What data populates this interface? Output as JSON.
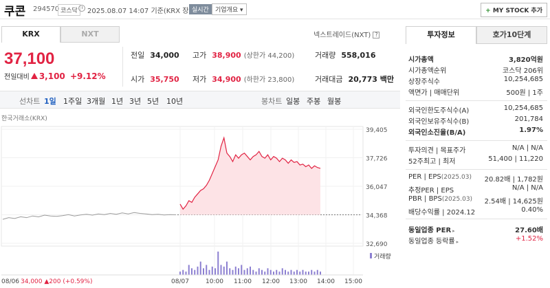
{
  "header": {
    "stock_name": "쿠콘",
    "stock_code": "294570",
    "market_badge": "코스닥",
    "timestamp": "2025.08.07 14:07",
    "timestamp_suffix": "기준(KRX 장중)",
    "live_badge": "실시간",
    "company_intro_button": "기업개요",
    "my_stock_button": "MY STOCK 추가"
  },
  "tabs": {
    "krx": "KRX",
    "nxt": "NXT"
  },
  "nextrade_link": "넥스트레이드(NXT)",
  "price": {
    "current": "37,100",
    "change_label": "전일대비",
    "change": "3,100",
    "change_pct": "+9.12%"
  },
  "stats": {
    "prev_label": "전일",
    "prev": "34,000",
    "high_label": "고가",
    "high": "38,900",
    "upper_limit": "(상한가 44,200)",
    "volume_label": "거래량",
    "volume": "558,016",
    "open_label": "시가",
    "open": "35,750",
    "low_label": "저가",
    "low": "34,900",
    "lower_limit": "(하한가 23,800)",
    "amount_label": "거래대금",
    "amount": "20,773 백만"
  },
  "period_bar": {
    "label": "선차트",
    "periods": [
      "1일",
      "1주일",
      "3개월",
      "1년",
      "3년",
      "5년",
      "10년"
    ],
    "selected": "1일",
    "candle_label": "봉차트",
    "candle_periods": [
      "일봉",
      "주봉",
      "월봉"
    ]
  },
  "exchange_label": "한국거래소(KRX)",
  "chart_data": {
    "type": "line",
    "y_ticks": [
      "39,405",
      "37,726",
      "36,047",
      "34,368",
      "32,690"
    ],
    "ylim": [
      32690,
      39405
    ],
    "reference_line": 34368,
    "x_ticks": [
      "08/07",
      "10:00",
      "11:00",
      "12:00",
      "13:00",
      "14:00",
      "15:00"
    ],
    "prev_day_date": "08/06",
    "prev_day_summary": {
      "price": "34,000",
      "change": "200",
      "change_pct": "(+0.59%)"
    },
    "volume_label": "거래량",
    "series": [
      {
        "values": [
          34100,
          34200,
          34150,
          34250,
          34200,
          34300,
          34250,
          34350,
          34300,
          34280,
          34320,
          34380,
          34300,
          34360,
          34400,
          34350,
          34420,
          34380,
          34450,
          34400,
          34480,
          34420,
          34500,
          34450,
          34420,
          34380,
          34400,
          34360,
          34380,
          34368
        ]
      },
      {
        "values": [
          35000,
          34700,
          34900,
          35200,
          35100,
          35400,
          35600,
          35800,
          35900,
          36100,
          36400,
          36800,
          37200,
          37600,
          38400,
          38900,
          38000,
          37800,
          37500,
          37900,
          37700,
          37900,
          38000,
          37800,
          37600,
          37800,
          37900,
          38100,
          37800,
          37700,
          37900,
          37600,
          37800,
          37700,
          37500,
          37700,
          37600,
          37400,
          37600,
          37450,
          37500,
          37300,
          37350,
          37200,
          37300,
          37100,
          37250,
          37150,
          37100
        ]
      }
    ],
    "volume": [
      2,
      3,
      2,
      6,
      4,
      3,
      5,
      8,
      4,
      6,
      3,
      5,
      4,
      14,
      6,
      5,
      8,
      4,
      3,
      5,
      4,
      6,
      3,
      4,
      5,
      3,
      2,
      4,
      3,
      2,
      4,
      3,
      2,
      3,
      2,
      4,
      3,
      2,
      3,
      2,
      3,
      2,
      3,
      2,
      2,
      3,
      2,
      3,
      2
    ]
  },
  "investment_panel": {
    "tab_invest": "투자정보",
    "tab_orderbook": "호가10단계",
    "rows": [
      {
        "k": "시가총액",
        "v": "3,820억원"
      },
      {
        "k": "시가총액순위",
        "v": "코스닥 206위"
      },
      {
        "k": "상장주식수",
        "v": "10,254,685"
      },
      {
        "k": "액면가 | 매매단위",
        "v": "500원 | 1주"
      },
      {
        "k": "외국인한도주식수(A)",
        "v": "10,254,685"
      },
      {
        "k": "외국인보유주식수(B)",
        "v": "201,784"
      },
      {
        "k": "외국인소진율(B/A)",
        "v": "1.97%"
      },
      {
        "k": "투자의견 | 목표주가",
        "v": "N/A | N/A"
      },
      {
        "k": "52주최고 | 최저",
        "v": "51,400 | 11,220"
      },
      {
        "k": "PER | EPS",
        "k_sub": "(2025.03)",
        "v": "20.82배 | 1,782원"
      },
      {
        "k": "추정PER | EPS",
        "v": "N/A | N/A"
      },
      {
        "k": "PBR | BPS",
        "k_sub": "(2025.03)",
        "v": "2.54배 | 14,625원"
      },
      {
        "k": "배당수익률 | 2024.12",
        "v": "0.40%"
      },
      {
        "k": "동일업종 PER",
        "v": "27.60배"
      },
      {
        "k": "동일업종 등락률",
        "v": "+1.52%"
      }
    ]
  }
}
